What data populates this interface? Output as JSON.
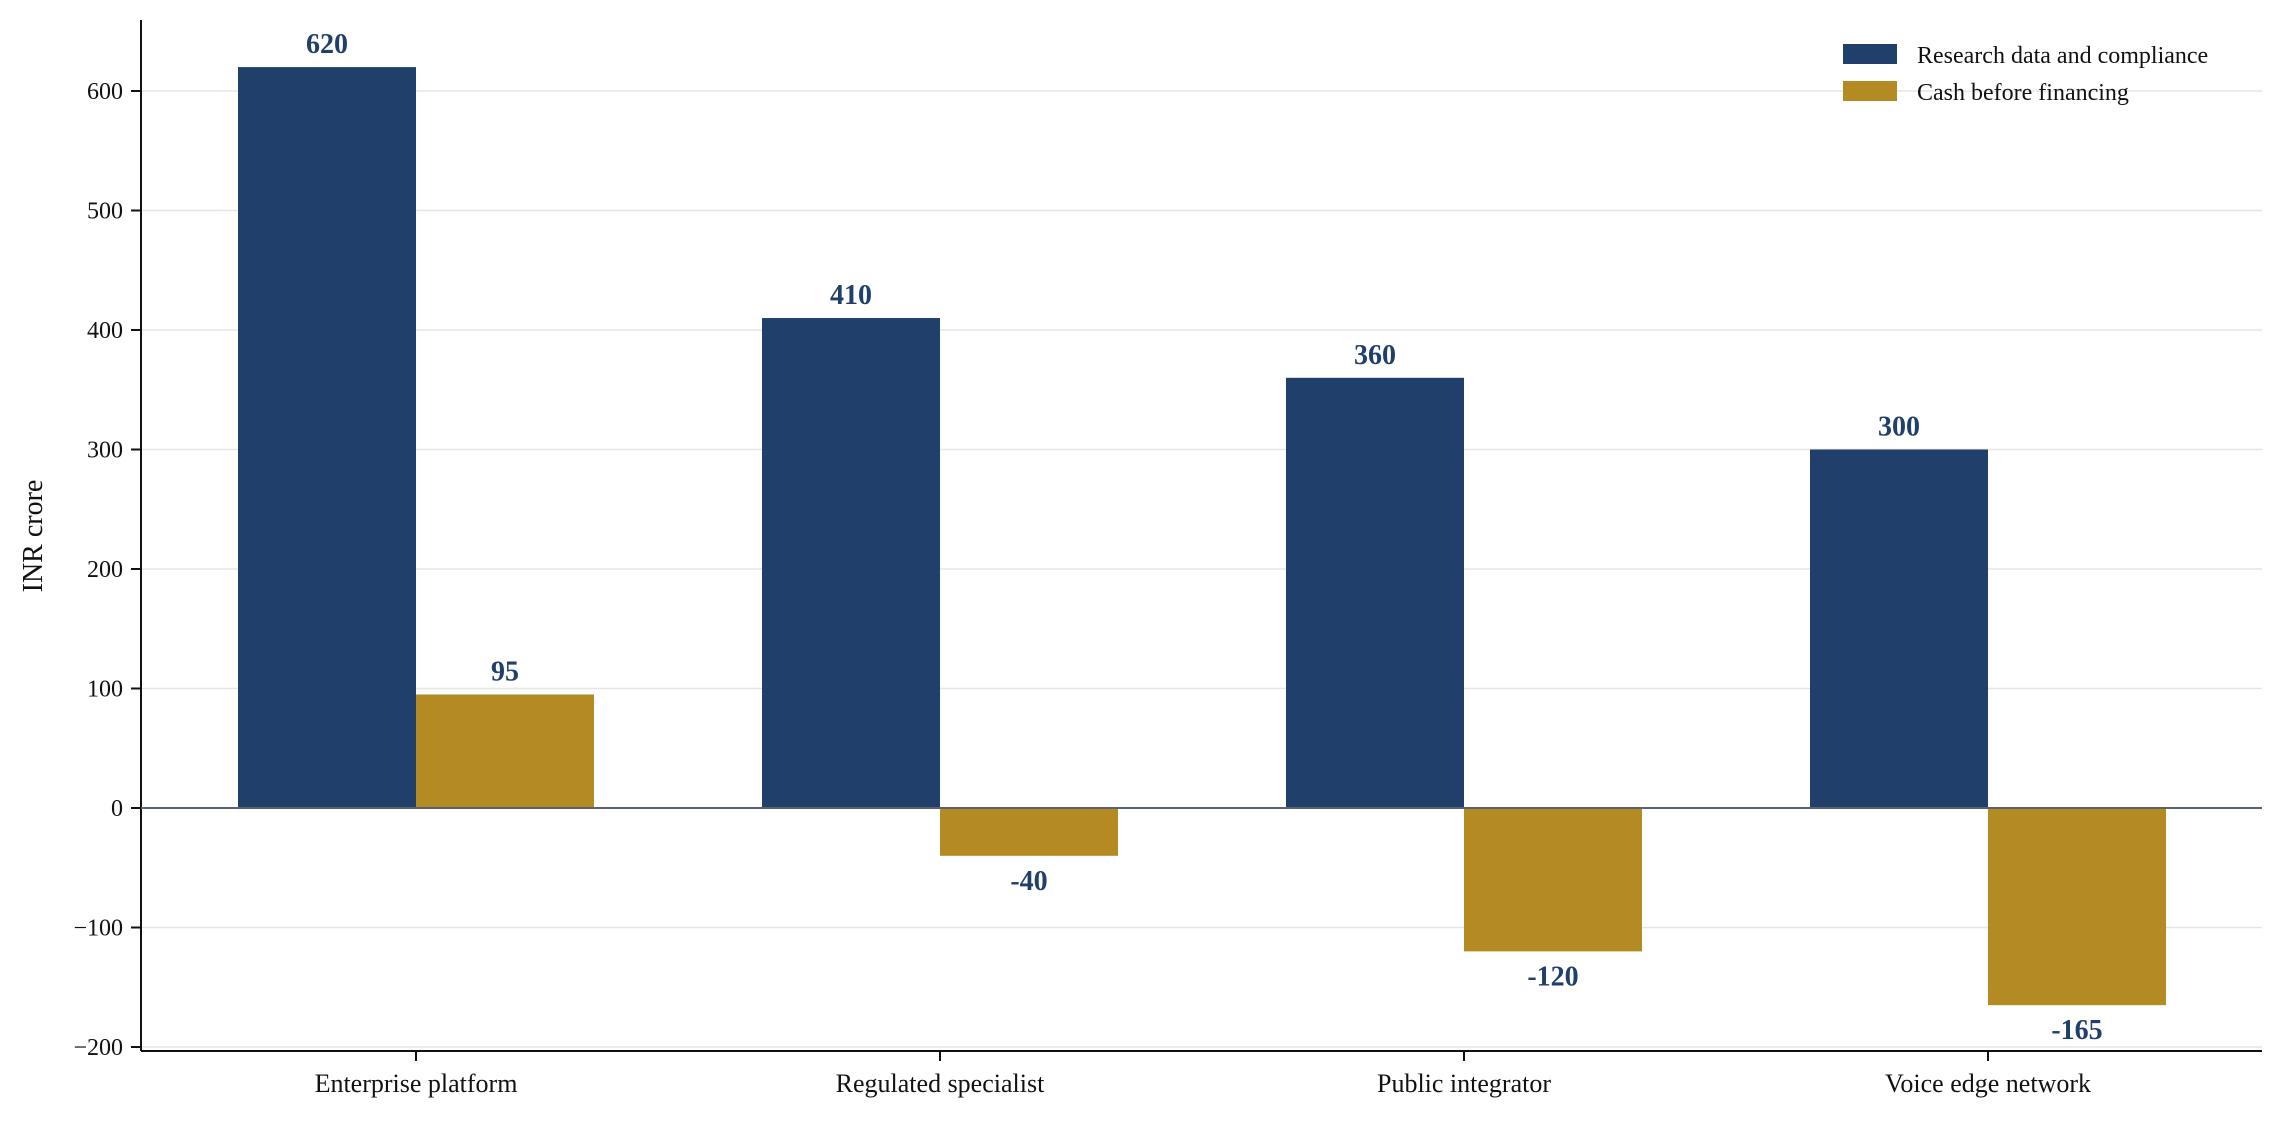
{
  "chart_data": {
    "type": "bar",
    "title": "",
    "xlabel": "",
    "ylabel": "INR crore",
    "ylim": [
      -200,
      660
    ],
    "yticks": [
      -200,
      -100,
      0,
      100,
      200,
      300,
      400,
      500,
      600
    ],
    "ytick_labels": [
      "−200",
      "−100",
      "0",
      "100",
      "200",
      "300",
      "400",
      "500",
      "600"
    ],
    "categories": [
      "Enterprise platform",
      "Regulated specialist",
      "Public integrator",
      "Voice edge network"
    ],
    "series": [
      {
        "name": "Research data and compliance",
        "color": "#203f6a",
        "values": [
          620,
          410,
          360,
          300
        ],
        "labels": [
          "620",
          "410",
          "360",
          "300"
        ]
      },
      {
        "name": "Cash before financing",
        "color": "#b38b22",
        "values": [
          95,
          -40,
          -120,
          -165
        ],
        "labels": [
          "95",
          "-40",
          "-120",
          "-165"
        ]
      }
    ],
    "data_label_color": "#203f6a",
    "grid": true,
    "legend_position": "top-right"
  }
}
